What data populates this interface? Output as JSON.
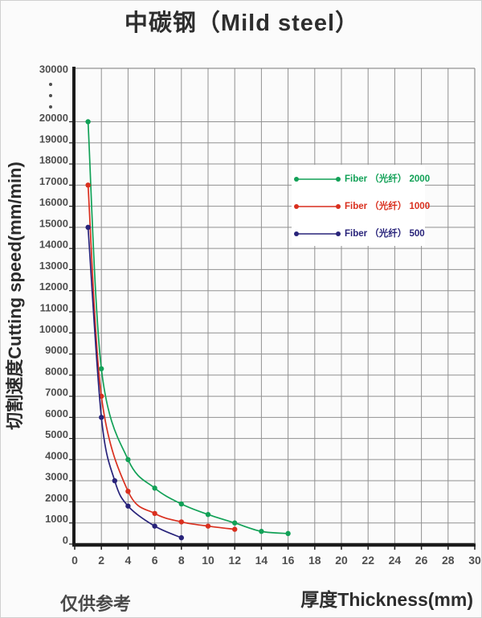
{
  "title": "中碳钢（Mild steel）",
  "chart_data": {
    "type": "line",
    "title": "中碳钢（Mild steel）",
    "xlabel": "厚度Thickness(mm)",
    "ylabel": "切割速度Cutting speed(mm/min)",
    "note": "仅供参考",
    "xlim": [
      0,
      30
    ],
    "x_ticks": [
      0,
      2,
      4,
      6,
      8,
      10,
      12,
      14,
      16,
      18,
      20,
      22,
      24,
      26,
      28,
      30
    ],
    "y_linear_max": 20000,
    "y_tick_step": 1000,
    "y_axis_break": {
      "upper_label": "30000",
      "dots": 3
    },
    "grid": true,
    "legend_position": "inset-upper-right",
    "series": [
      {
        "name": "Fiber （光纤） 2000",
        "color": "#12a157",
        "x": [
          1,
          2,
          4,
          6,
          8,
          10,
          12,
          14,
          16
        ],
        "y": [
          20000,
          8300,
          4000,
          2650,
          1900,
          1400,
          1000,
          600,
          500
        ]
      },
      {
        "name": "Fiber （光纤） 1000",
        "color": "#d92f1e",
        "x": [
          1,
          2,
          4,
          6,
          8,
          10,
          12
        ],
        "y": [
          17000,
          7000,
          2500,
          1450,
          1050,
          850,
          700
        ]
      },
      {
        "name": "Fiber （光纤） 500",
        "color": "#28237a",
        "x": [
          1,
          2,
          3,
          4,
          6,
          8
        ],
        "y": [
          15000,
          6000,
          3000,
          1800,
          850,
          300
        ]
      }
    ],
    "style": {
      "grid_color": "#919191",
      "border_color": "#7a7a7a",
      "axis_color": "#1b1b1b",
      "tick_label_color": "#4f4f4f",
      "legend_bg": "#ffffff"
    }
  }
}
